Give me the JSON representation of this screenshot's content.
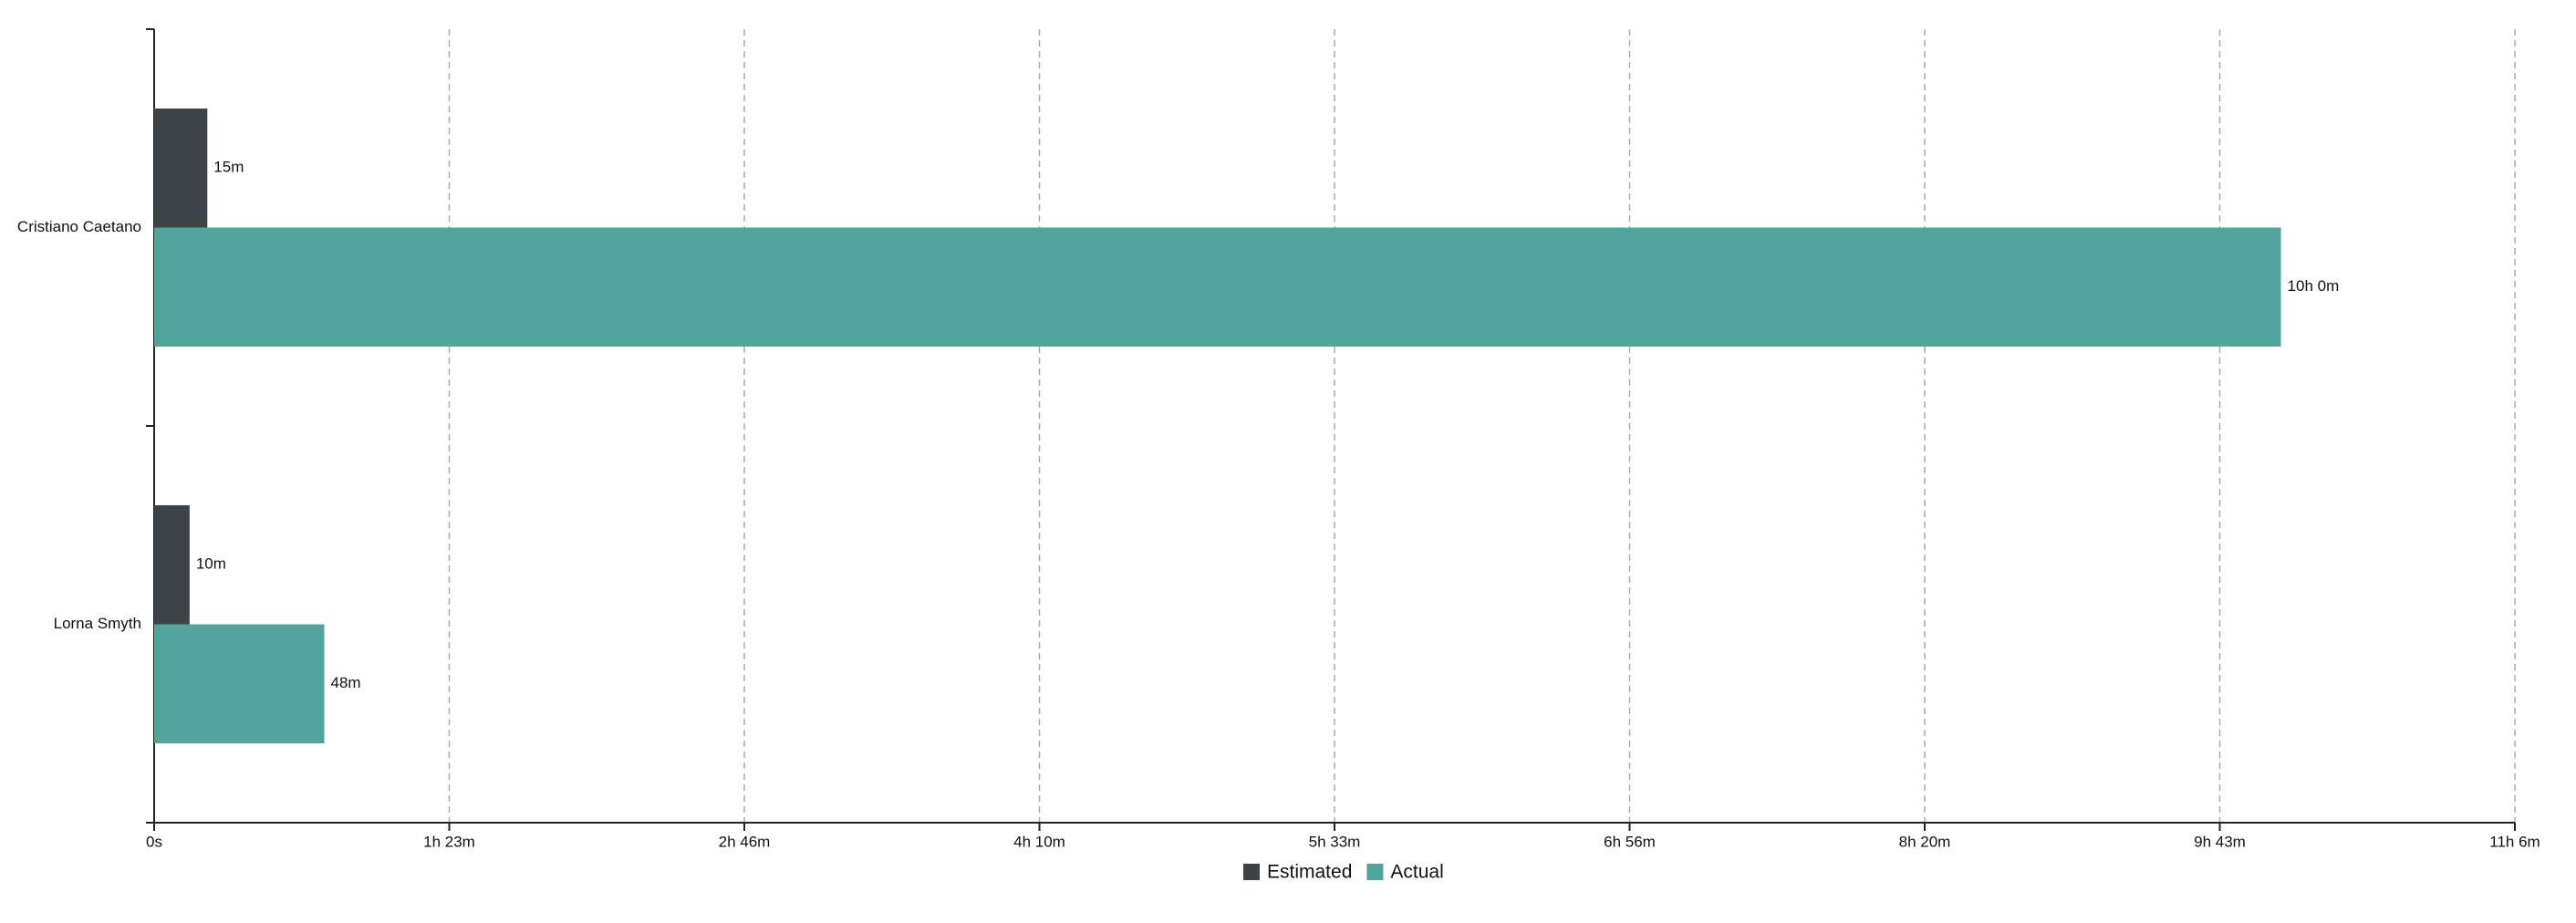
{
  "chart_data": {
    "type": "hbar",
    "categories": [
      "Cristiano Caetano",
      "Lorna Smyth"
    ],
    "series": [
      {
        "name": "Estimated",
        "color": "#3d4347",
        "values": [
          15,
          10
        ],
        "value_labels": [
          "15m",
          "10m"
        ]
      },
      {
        "name": "Actual",
        "color": "#52a59c",
        "values": [
          600,
          48
        ],
        "value_labels": [
          "10h 0m",
          "48m"
        ]
      }
    ],
    "xlim": [
      0,
      666
    ],
    "xticks": [
      {
        "value": 0,
        "label": "0s"
      },
      {
        "value": 83.25,
        "label": "1h 23m"
      },
      {
        "value": 166.5,
        "label": "2h 46m"
      },
      {
        "value": 249.75,
        "label": "4h 10m"
      },
      {
        "value": 333,
        "label": "5h 33m"
      },
      {
        "value": 416.25,
        "label": "6h 56m"
      },
      {
        "value": 499.5,
        "label": "8h 20m"
      },
      {
        "value": 582.75,
        "label": "9h 43m"
      },
      {
        "value": 666,
        "label": "11h 6m"
      }
    ],
    "grid": true,
    "legend": "bottom"
  }
}
